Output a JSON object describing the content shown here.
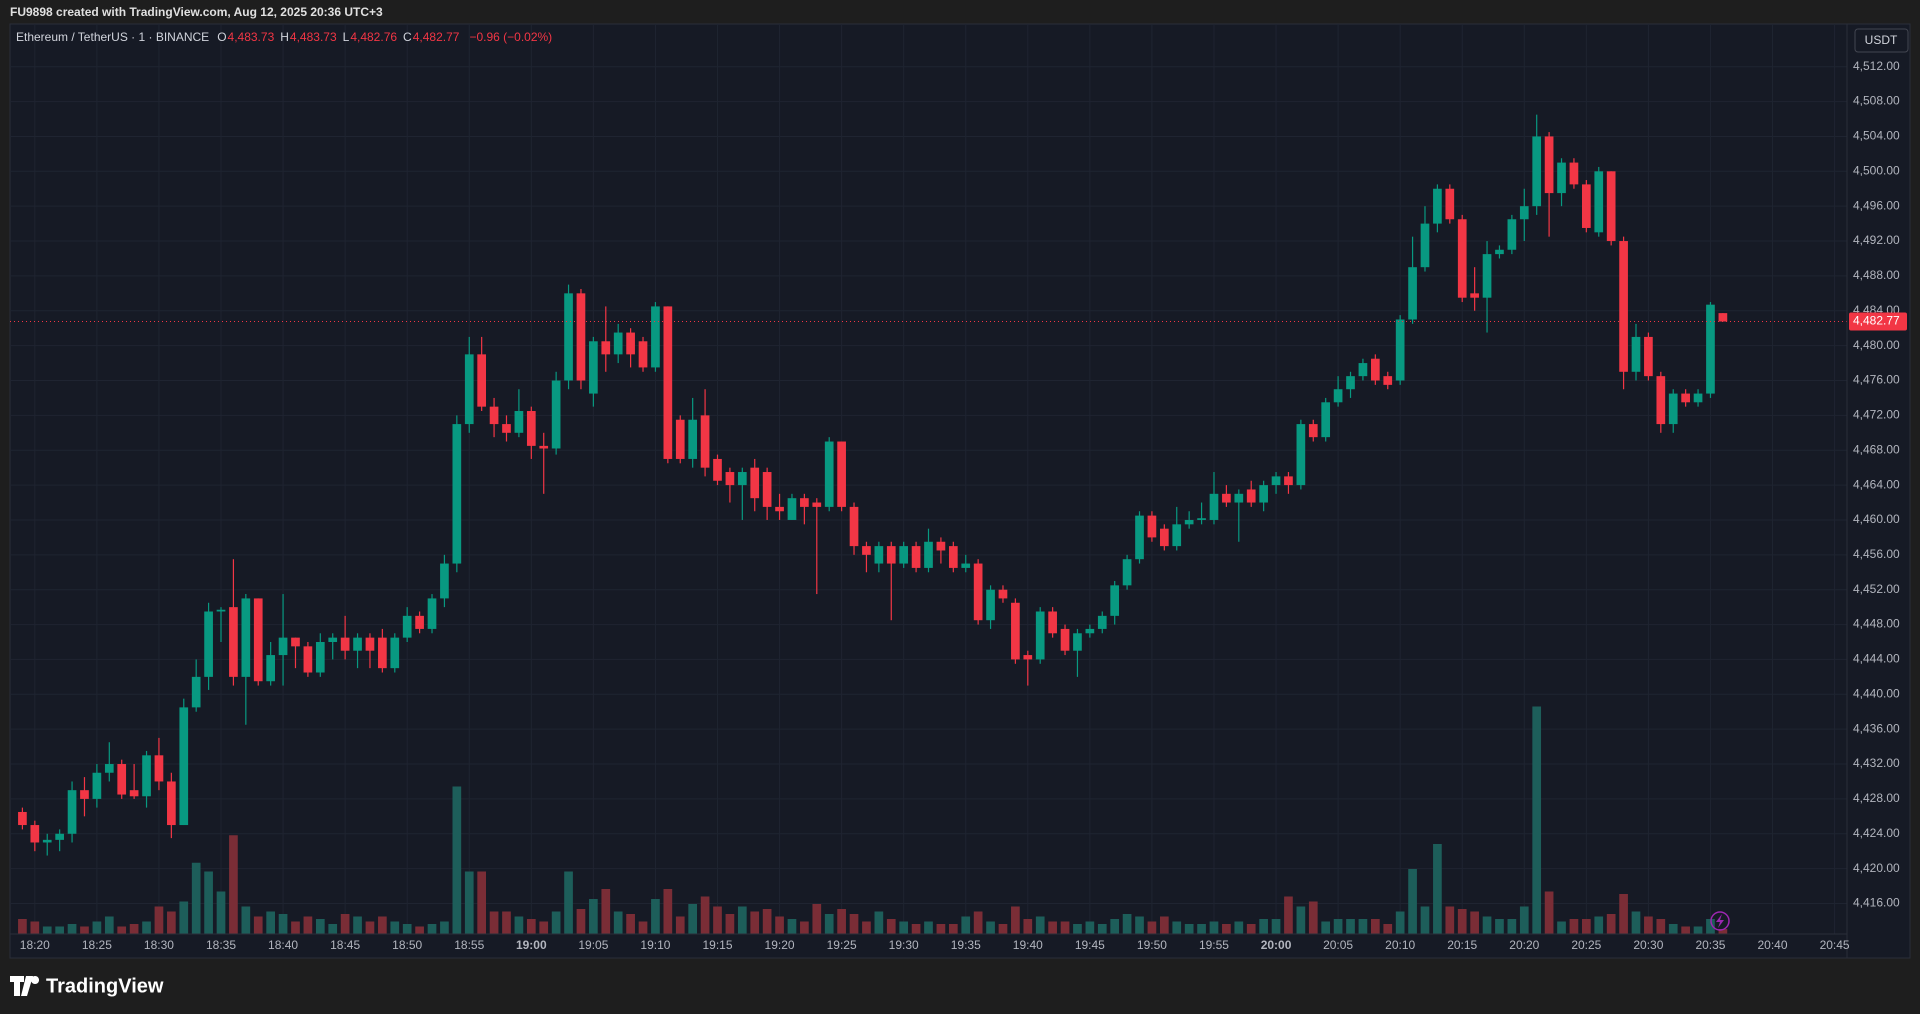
{
  "header": {
    "created": "FU9898 created with TradingView.com, Aug 12, 2025 20:36 UTC+3",
    "brand": "TradingView"
  },
  "chart_data": {
    "type": "candlestick",
    "legend": {
      "symbol": "Ethereum / TetherUS · 1 · BINANCE",
      "items": [
        {
          "key": "O",
          "value": "4,483.73"
        },
        {
          "key": "H",
          "value": "4,483.73"
        },
        {
          "key": "L",
          "value": "4,482.76"
        },
        {
          "key": "C",
          "value": "4,482.77"
        }
      ],
      "change": "−0.96 (−0.02%)"
    },
    "currency": "USDT",
    "up_color": "#089981",
    "down_color": "#f23645",
    "volume_up_color": "#1d5e5a",
    "volume_down_color": "#7a2d36",
    "grid": true,
    "xlim": [
      "18:18",
      "20:46"
    ],
    "xticks": [
      "18:20",
      "18:25",
      "18:30",
      "18:35",
      "18:40",
      "18:45",
      "18:50",
      "18:55",
      "19:00",
      "19:05",
      "19:10",
      "19:15",
      "19:20",
      "19:25",
      "19:30",
      "19:35",
      "19:40",
      "19:45",
      "19:50",
      "19:55",
      "20:00",
      "20:05",
      "20:10",
      "20:15",
      "20:20",
      "20:25",
      "20:30",
      "20:35",
      "20:40",
      "20:45"
    ],
    "ylim": [
      4412.5,
      4516.9
    ],
    "yticks": [
      {
        "value": 4416,
        "label": "4,416.00"
      },
      {
        "value": 4420,
        "label": "4,420.00"
      },
      {
        "value": 4424,
        "label": "4,424.00"
      },
      {
        "value": 4428,
        "label": "4,428.00"
      },
      {
        "value": 4432,
        "label": "4,432.00"
      },
      {
        "value": 4436,
        "label": "4,436.00"
      },
      {
        "value": 4440,
        "label": "4,440.00"
      },
      {
        "value": 4444,
        "label": "4,444.00"
      },
      {
        "value": 4448,
        "label": "4,448.00"
      },
      {
        "value": 4452,
        "label": "4,452.00"
      },
      {
        "value": 4456,
        "label": "4,456.00"
      },
      {
        "value": 4460,
        "label": "4,460.00"
      },
      {
        "value": 4464,
        "label": "4,464.00"
      },
      {
        "value": 4468,
        "label": "4,468.00"
      },
      {
        "value": 4472,
        "label": "4,472.00"
      },
      {
        "value": 4476,
        "label": "4,476.00"
      },
      {
        "value": 4480,
        "label": "4,480.00"
      },
      {
        "value": 4484,
        "label": "4,484.00"
      },
      {
        "value": 4488,
        "label": "4,488.00"
      },
      {
        "value": 4492,
        "label": "4,492.00"
      },
      {
        "value": 4496,
        "label": "4,496.00"
      },
      {
        "value": 4500,
        "label": "4,500.00"
      },
      {
        "value": 4504,
        "label": "4,504.00"
      },
      {
        "value": 4508,
        "label": "4,508.00"
      },
      {
        "value": 4512,
        "label": "4,512.00"
      }
    ],
    "last_price": {
      "value": 4482.77,
      "label": "4,482.77"
    },
    "x": [
      "18:19",
      "18:20",
      "18:21",
      "18:22",
      "18:23",
      "18:24",
      "18:25",
      "18:26",
      "18:27",
      "18:28",
      "18:29",
      "18:30",
      "18:31",
      "18:32",
      "18:33",
      "18:34",
      "18:35",
      "18:36",
      "18:37",
      "18:38",
      "18:39",
      "18:40",
      "18:41",
      "18:42",
      "18:43",
      "18:44",
      "18:45",
      "18:46",
      "18:47",
      "18:48",
      "18:49",
      "18:50",
      "18:51",
      "18:52",
      "18:53",
      "18:54",
      "18:55",
      "18:56",
      "18:57",
      "18:58",
      "18:59",
      "19:00",
      "19:01",
      "19:02",
      "19:03",
      "19:04",
      "19:05",
      "19:06",
      "19:07",
      "19:08",
      "19:09",
      "19:10",
      "19:11",
      "19:12",
      "19:13",
      "19:14",
      "19:15",
      "19:16",
      "19:17",
      "19:18",
      "19:19",
      "19:20",
      "19:21",
      "19:22",
      "19:23",
      "19:24",
      "19:25",
      "19:26",
      "19:27",
      "19:28",
      "19:29",
      "19:30",
      "19:31",
      "19:32",
      "19:33",
      "19:34",
      "19:35",
      "19:36",
      "19:37",
      "19:38",
      "19:39",
      "19:40",
      "19:41",
      "19:42",
      "19:43",
      "19:44",
      "19:45",
      "19:46",
      "19:47",
      "19:48",
      "19:49",
      "19:50",
      "19:51",
      "19:52",
      "19:53",
      "19:54",
      "19:55",
      "19:56",
      "19:57",
      "19:58",
      "19:59",
      "20:00",
      "20:01",
      "20:02",
      "20:03",
      "20:04",
      "20:05",
      "20:06",
      "20:07",
      "20:08",
      "20:09",
      "20:10",
      "20:11",
      "20:12",
      "20:13",
      "20:14",
      "20:15",
      "20:16",
      "20:17",
      "20:18",
      "20:19",
      "20:20",
      "20:21",
      "20:22",
      "20:23",
      "20:24",
      "20:25",
      "20:26",
      "20:27",
      "20:28",
      "20:29",
      "20:30",
      "20:31",
      "20:32",
      "20:33",
      "20:34",
      "20:35",
      "20:36"
    ],
    "open": [
      4426.5,
      4425,
      4423,
      4423.3,
      4424,
      4429,
      4428,
      4431,
      4432,
      4429,
      4428.3,
      4433,
      4430,
      4425,
      4438.5,
      4442,
      4449.5,
      4450,
      4442,
      4451,
      4441.5,
      4444.5,
      4446.5,
      4445.5,
      4442.5,
      4446,
      4446.5,
      4445,
      4446.5,
      4446.5,
      4443,
      4446.5,
      4449,
      4447.5,
      4451,
      4455,
      4471,
      4479,
      4473,
      4471,
      4470,
      4472.5,
      4468.5,
      4468.2,
      4476,
      4486,
      4474.5,
      4480.5,
      4479,
      4481.5,
      4480.5,
      4477.5,
      4484.5,
      4471.5,
      4467,
      4472,
      4467,
      4465.5,
      4464,
      4466,
      4465.5,
      4461.5,
      4460,
      4462.5,
      4462,
      4461.5,
      4469,
      4461.5,
      4457,
      4455,
      4457,
      4455,
      4457,
      4454.5,
      4457.5,
      4457,
      4454.5,
      4455,
      4448.5,
      4452,
      4450.5,
      4444.5,
      4444,
      4449.5,
      4447.5,
      4445,
      4447,
      4447.5,
      4449,
      4452.5,
      4455.5,
      4460.5,
      4459,
      4457,
      4459.5,
      4460,
      4460,
      4463,
      4462,
      4463.5,
      4462,
      4464,
      4465,
      4464,
      4471,
      4469.5,
      4473.5,
      4475,
      4476.5,
      4478.5,
      4476.5,
      4476,
      4483,
      4489,
      4494,
      4498,
      4494.5,
      4486,
      4485.5,
      4490.5,
      4491,
      4494.5,
      4496,
      4504,
      4497.5,
      4501,
      4498.5,
      4493,
      4500,
      4492,
      4477,
      4481,
      4476.5,
      4471,
      4474.5,
      4473.5,
      4474.5,
      4483.73
    ],
    "high": [
      4427,
      4425.5,
      4424,
      4424.5,
      4430,
      4430.5,
      4432,
      4434.5,
      4432.5,
      4432,
      4433.5,
      4435,
      4431,
      4439.5,
      4444,
      4450.5,
      4450,
      4455.5,
      4451.5,
      4451,
      4446,
      4451.5,
      4446.5,
      4446,
      4447,
      4447,
      4449,
      4447,
      4447,
      4447.5,
      4447,
      4450,
      4449.5,
      4451.5,
      4456,
      4472,
      4481,
      4481,
      4474,
      4472,
      4475,
      4473,
      4470,
      4477,
      4487,
      4486.5,
      4481,
      4484.5,
      4482.5,
      4482,
      4481,
      4485,
      4484.5,
      4472,
      4474,
      4475,
      4467.5,
      4466,
      4466,
      4467,
      4466,
      4463,
      4463,
      4463,
      4462.5,
      4469.5,
      4469,
      4462,
      4457.5,
      4457.5,
      4457.5,
      4457.5,
      4457.5,
      4459,
      4458,
      4457.5,
      4456,
      4455.5,
      4452.5,
      4452.5,
      4451,
      4445,
      4450,
      4450,
      4448,
      4447.5,
      4448,
      4449.5,
      4453,
      4456,
      4461,
      4461,
      4459.5,
      4461.5,
      4461,
      4462,
      4465.5,
      4464,
      4463.5,
      4464.5,
      4464.5,
      4465.5,
      4465.5,
      4471.5,
      4471.5,
      4474,
      4476.5,
      4477,
      4478.5,
      4479,
      4477,
      4483.5,
      4492.5,
      4496,
      4498.5,
      4498.5,
      4495,
      4489,
      4492,
      4491.5,
      4495,
      4498,
      4506.5,
      4504.5,
      4501.5,
      4501.5,
      4499,
      4500.5,
      4500,
      4492.5,
      4482.5,
      4481.5,
      4477,
      4475,
      4475,
      4475,
      4485,
      4483.73
    ],
    "low": [
      4424.5,
      4422,
      4421.5,
      4422,
      4423,
      4426,
      4427,
      4430,
      4428,
      4428,
      4427,
      4429,
      4423.5,
      4425,
      4438,
      4440.5,
      4446,
      4441,
      4436.5,
      4441,
      4441,
      4441,
      4443,
      4442,
      4442,
      4444,
      4444,
      4443,
      4443,
      4442.5,
      4442.5,
      4446,
      4447,
      4447,
      4450,
      4454,
      4470,
      4472.5,
      4469.5,
      4469,
      4469.5,
      4467,
      4463,
      4467.5,
      4475,
      4475,
      4473,
      4477,
      4478,
      4477.5,
      4477,
      4477,
      4466.5,
      4466.5,
      4466,
      4465,
      4464,
      4462,
      4460,
      4461,
      4460,
      4460,
      4460,
      4459.5,
      4451.5,
      4461,
      4461,
      4456,
      4454,
      4454,
      4448.5,
      4454.5,
      4454,
      4454,
      4455,
      4454,
      4454,
      4448,
      4447.5,
      4450.5,
      4443.5,
      4441,
      4443.5,
      4446.5,
      4444.5,
      4442,
      4446.5,
      4447,
      4448,
      4452,
      4455,
      4457.5,
      4456.5,
      4456.5,
      4459,
      4459.5,
      4459.5,
      4461.5,
      4457.5,
      4461.5,
      4461,
      4463,
      4463,
      4463.5,
      4469,
      4469,
      4473,
      4474,
      4476,
      4475.5,
      4475,
      4475.5,
      4482.5,
      4488.5,
      4493,
      4494,
      4485,
      4484,
      4481.5,
      4490,
      4490.5,
      4492,
      4495,
      4492.5,
      4496,
      4498,
      4493,
      4492.5,
      4491.5,
      4475,
      4476,
      4476,
      4470,
      4470,
      4473,
      4473,
      4474,
      4482.76
    ],
    "close": [
      4425,
      4423,
      4423.3,
      4424,
      4429,
      4428,
      4431,
      4432,
      4428.5,
      4428.3,
      4433,
      4430,
      4425,
      4438.5,
      4442,
      4449.5,
      4449.7,
      4442,
      4451,
      4441.5,
      4444.5,
      4446.5,
      4445.5,
      4442.5,
      4446,
      4446.5,
      4445,
      4446.5,
      4445,
      4443,
      4446.5,
      4449,
      4447.5,
      4451,
      4455,
      4471,
      4479,
      4473,
      4471,
      4470,
      4472.5,
      4468.5,
      4468.2,
      4476,
      4486,
      4476,
      4480.5,
      4479,
      4481.5,
      4479,
      4477.5,
      4484.5,
      4467,
      4467,
      4471.5,
      4466,
      4464.5,
      4464,
      4465.5,
      4462.5,
      4461.5,
      4461,
      4462.5,
      4461.5,
      4461.5,
      4469,
      4461.5,
      4457,
      4456,
      4457,
      4455,
      4457,
      4454.5,
      4457.5,
      4456.5,
      4454.5,
      4455,
      4448.5,
      4452,
      4451,
      4444,
      4444,
      4449.5,
      4447,
      4445,
      4447,
      4447.5,
      4449,
      4452.5,
      4455.5,
      4460.5,
      4458,
      4457,
      4459.5,
      4460,
      4460.2,
      4463,
      4462,
      4463,
      4462,
      4464,
      4465,
      4464,
      4471,
      4469.5,
      4473.5,
      4475,
      4476.5,
      4478,
      4476,
      4475.5,
      4483,
      4489,
      4494,
      4498,
      4494.5,
      4485.5,
      4485.5,
      4490.5,
      4491,
      4494.5,
      4496,
      4504,
      4497.5,
      4501,
      4498.5,
      4493.5,
      4500,
      4492,
      4477,
      4481,
      4476.5,
      4471,
      4474.5,
      4473.5,
      4474.5,
      4484.7,
      4482.77
    ],
    "volume": [
      12,
      10,
      6,
      6,
      8,
      6,
      10,
      14,
      6,
      8,
      10,
      22,
      18,
      26,
      57,
      50,
      34,
      79,
      22,
      14,
      18,
      16,
      10,
      14,
      12,
      8,
      16,
      14,
      10,
      14,
      10,
      8,
      6,
      8,
      10,
      118,
      50,
      50,
      18,
      18,
      14,
      12,
      10,
      18,
      50,
      20,
      28,
      36,
      18,
      16,
      10,
      28,
      36,
      14,
      24,
      30,
      22,
      16,
      22,
      18,
      20,
      14,
      12,
      10,
      24,
      16,
      20,
      16,
      10,
      18,
      12,
      10,
      8,
      10,
      8,
      8,
      14,
      18,
      10,
      8,
      22,
      12,
      14,
      10,
      10,
      8,
      10,
      8,
      12,
      16,
      14,
      10,
      14,
      10,
      8,
      8,
      10,
      8,
      10,
      8,
      12,
      12,
      30,
      22,
      26,
      10,
      12,
      12,
      12,
      12,
      8,
      18,
      52,
      22,
      72,
      22,
      20,
      18,
      14,
      12,
      12,
      22,
      182,
      34,
      10,
      12,
      12,
      14,
      16,
      32,
      18,
      14,
      12,
      8,
      6,
      6,
      12,
      4
    ]
  }
}
